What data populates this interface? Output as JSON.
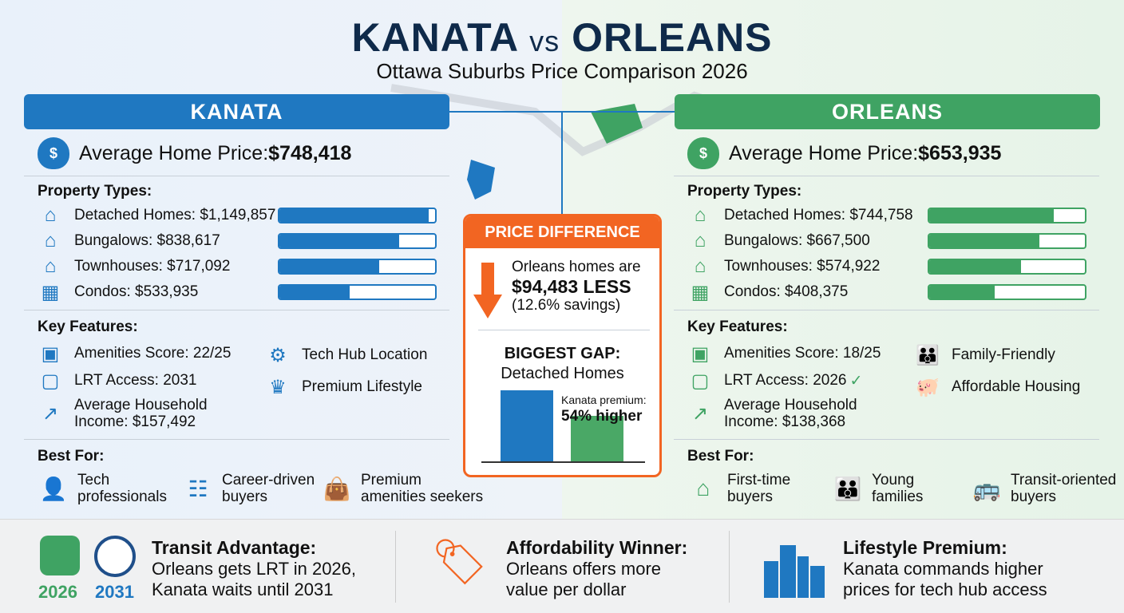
{
  "header": {
    "title_left": "KANATA",
    "title_vs": "vs",
    "title_right": "ORLEANS",
    "subtitle": "Ottawa Suburbs Price Comparison 2026"
  },
  "colors": {
    "kanata": "#1f78c1",
    "orleans": "#3fa363",
    "accent": "#f26522"
  },
  "kanata": {
    "name": "KANATA",
    "avg_label": "Average Home Price: ",
    "avg_price": "$748,418",
    "property_label": "Property Types:",
    "properties": [
      {
        "label": "Detached Homes: $1,149,857",
        "icon": "house-icon",
        "fill": 0.96
      },
      {
        "label": "Bungalows: $838,617",
        "icon": "bungalow-icon",
        "fill": 0.77
      },
      {
        "label": "Townhouses: $717,092",
        "icon": "townhouse-icon",
        "fill": 0.64
      },
      {
        "label": "Condos: $533,935",
        "icon": "condo-icon",
        "fill": 0.45
      }
    ],
    "features_label": "Key Features:",
    "features": {
      "amenities": "Amenities Score: 22/25",
      "lrt": "LRT Access: 2031",
      "income1": "Average Household",
      "income2": "Income: $157,492",
      "extra1": "Tech Hub Location",
      "extra2": "Premium Lifestyle"
    },
    "best_label": "Best For:",
    "best": [
      {
        "l1": "Tech",
        "l2": "professionals",
        "icon": "laptop-user-icon"
      },
      {
        "l1": "Career-driven",
        "l2": "buyers",
        "icon": "ladder-icon"
      },
      {
        "l1": "Premium",
        "l2": "amenities seekers",
        "icon": "shopping-bag-icon"
      }
    ]
  },
  "orleans": {
    "name": "ORLEANS",
    "avg_label": "Average Home Price: ",
    "avg_price": "$653,935",
    "property_label": "Property Types:",
    "properties": [
      {
        "label": "Detached Homes: $744,758",
        "icon": "house-icon",
        "fill": 0.8
      },
      {
        "label": "Bungalows: $667,500",
        "icon": "bungalow-icon",
        "fill": 0.71
      },
      {
        "label": "Townhouses: $574,922",
        "icon": "townhouse-icon",
        "fill": 0.59
      },
      {
        "label": "Condos: $408,375",
        "icon": "condo-icon",
        "fill": 0.42
      }
    ],
    "features_label": "Key Features:",
    "features": {
      "amenities": "Amenities Score: 18/25",
      "lrt": "LRT Access: 2026",
      "income1": "Average Household",
      "income2": "Income: $138,368",
      "extra1": "Family-Friendly",
      "extra2": "Affordable Housing"
    },
    "best_label": "Best For:",
    "best": [
      {
        "l1": "First-time",
        "l2": "buyers",
        "icon": "house-key-icon"
      },
      {
        "l1": "Young",
        "l2": "families",
        "icon": "stroller-icon"
      },
      {
        "l1": "Transit-oriented",
        "l2": "buyers",
        "icon": "bus-icon"
      }
    ]
  },
  "center": {
    "header": "PRICE DIFFERENCE",
    "line1": "Orleans homes are",
    "line2": "$94,483 LESS",
    "line3": "(12.6% savings)",
    "gap_title": "BIGGEST GAP:",
    "gap_sub": "Detached Homes",
    "premium_label": "Kanata premium:",
    "premium_value": "54% higher",
    "bars": {
      "kanata": 1149857,
      "orleans": 744758
    }
  },
  "bottom": [
    {
      "title": "Transit Advantage:",
      "l1": "Orleans gets LRT in 2026,",
      "l2": "Kanata waits until 2031",
      "y1": "2026",
      "y2": "2031"
    },
    {
      "title": "Affordability Winner:",
      "l1": "Orleans offers more",
      "l2": "value per dollar"
    },
    {
      "title": "Lifestyle Premium:",
      "l1": "Kanata commands higher",
      "l2": "prices for tech hub access"
    }
  ]
}
